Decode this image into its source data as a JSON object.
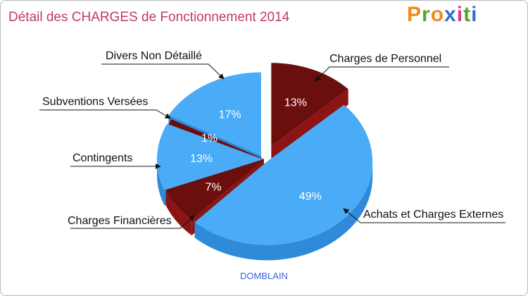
{
  "header": {
    "title": "Détail des CHARGES de Fonctionnement 2014",
    "logo_text": "Proxiti",
    "logo_letters": [
      "P",
      "r",
      "o",
      "x",
      "i",
      "t",
      "i"
    ],
    "logo_colors": [
      "#f28a1b",
      "#4fa72d",
      "#f28a1b",
      "#2f6fc9",
      "#e03a7f",
      "#4fa72d",
      "#2f6fc9"
    ]
  },
  "footer": {
    "commune": "DOMBLAIN"
  },
  "colors": {
    "blue_top": "#4aabf7",
    "blue_side": "#2f8ad9",
    "red_top": "#6b0e0e",
    "red_side": "#8c1414",
    "title": "#c0396b",
    "commune": "#3f63d8"
  },
  "chart_data": {
    "type": "pie",
    "title": "Détail des CHARGES de Fonctionnement 2014",
    "subtitle": "DOMBLAIN",
    "unit": "%",
    "slices": [
      {
        "label": "Charges de Personnel",
        "value": 13,
        "display": "13%",
        "color": "red"
      },
      {
        "label": "Achats et Charges Externes",
        "value": 49,
        "display": "49%",
        "color": "blue"
      },
      {
        "label": "Charges Financières",
        "value": 7,
        "display": "7%",
        "color": "red"
      },
      {
        "label": "Contingents",
        "value": 13,
        "display": "13%",
        "color": "blue"
      },
      {
        "label": "Subventions Versées",
        "value": 1,
        "display": "1%",
        "color": "red"
      },
      {
        "label": "Divers Non Détaillé",
        "value": 17,
        "display": "17%",
        "color": "blue"
      }
    ]
  }
}
